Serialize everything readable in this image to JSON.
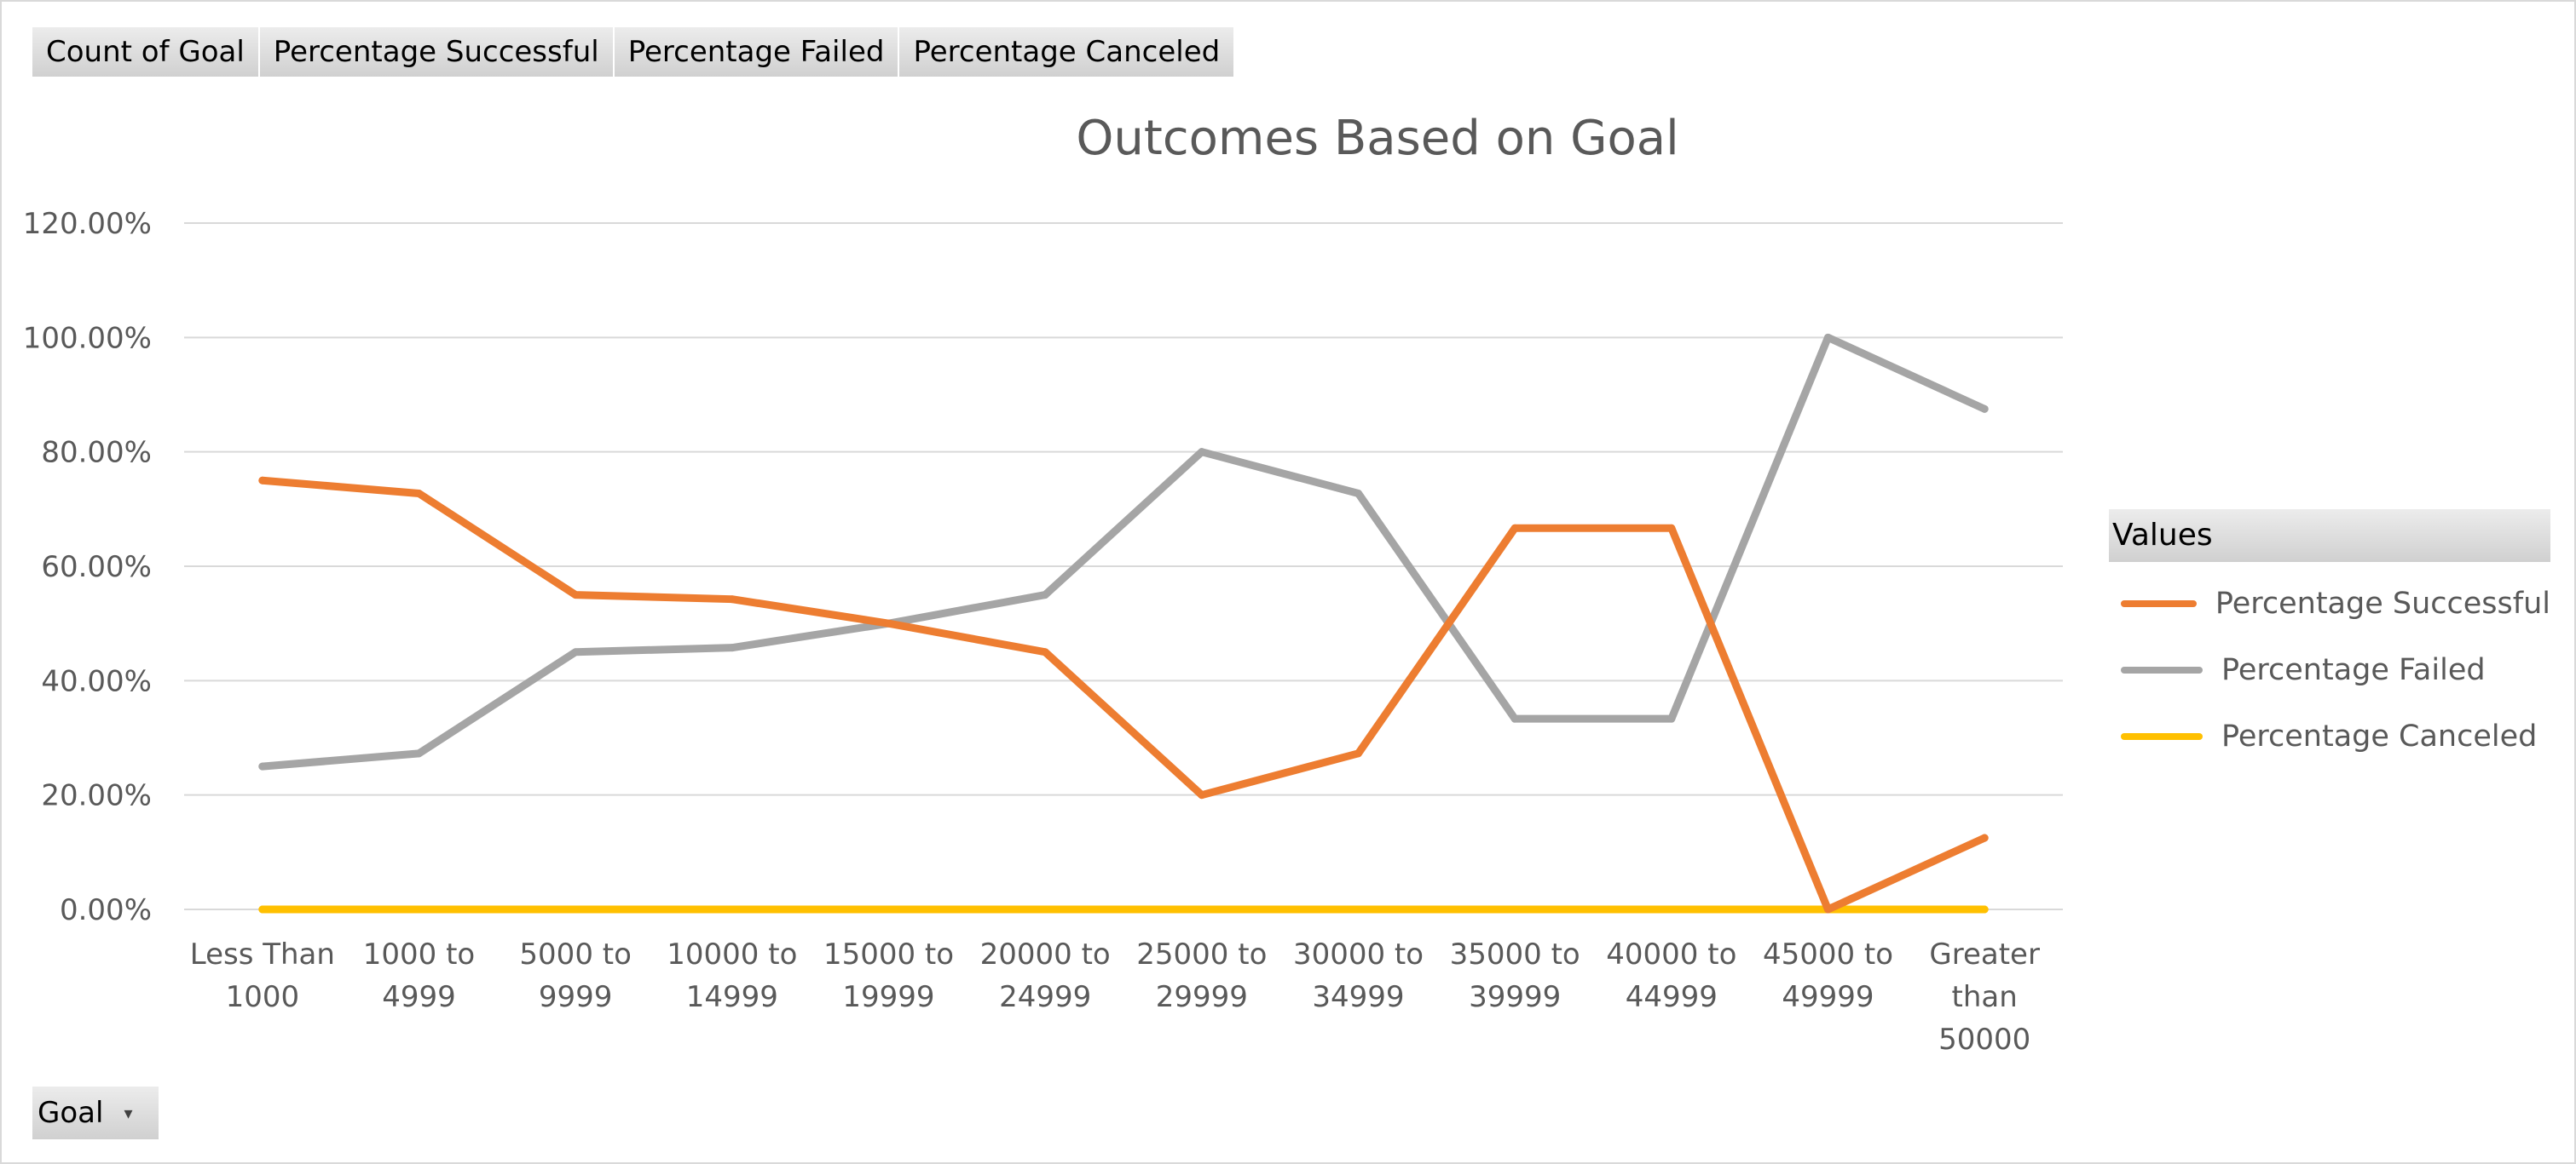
{
  "field_buttons": [
    "Count of Goal",
    "Percentage Successful",
    "Percentage Failed",
    "Percentage Canceled"
  ],
  "axis_field_button": {
    "label": "Goal"
  },
  "legend": {
    "header": "Values",
    "items": [
      {
        "label": "Percentage Successful",
        "color": "#ED7D31"
      },
      {
        "label": "Percentage Failed",
        "color": "#A5A5A5"
      },
      {
        "label": "Percentage Canceled",
        "color": "#FFC000"
      }
    ]
  },
  "chart_data": {
    "type": "line",
    "title": "Outcomes Based on Goal",
    "xlabel": "",
    "ylabel": "",
    "ylim": [
      0,
      1.2
    ],
    "y_ticks": [
      {
        "value": 0,
        "label": "0.00%"
      },
      {
        "value": 0.2,
        "label": "20.00%"
      },
      {
        "value": 0.4,
        "label": "40.00%"
      },
      {
        "value": 0.6,
        "label": "60.00%"
      },
      {
        "value": 0.8,
        "label": "80.00%"
      },
      {
        "value": 1.0,
        "label": "100.00%"
      },
      {
        "value": 1.2,
        "label": "120.00%"
      }
    ],
    "grid": true,
    "legend_position": "right",
    "categories": [
      [
        "Less Than",
        "1000"
      ],
      [
        "1000 to",
        "4999"
      ],
      [
        "5000 to",
        "9999"
      ],
      [
        "10000 to",
        "14999"
      ],
      [
        "15000 to",
        "19999"
      ],
      [
        "20000 to",
        "24999"
      ],
      [
        "25000 to",
        "29999"
      ],
      [
        "30000 to",
        "34999"
      ],
      [
        "35000 to",
        "39999"
      ],
      [
        "40000 to",
        "44999"
      ],
      [
        "45000 to",
        "49999"
      ],
      [
        "Greater",
        "than",
        "50000"
      ]
    ],
    "series": [
      {
        "name": "Percentage Successful",
        "color": "#ED7D31",
        "values": [
          0.75,
          0.7273,
          0.55,
          0.5424,
          0.5,
          0.45,
          0.2,
          0.2727,
          0.6667,
          0.6667,
          0.0,
          0.125
        ]
      },
      {
        "name": "Percentage Failed",
        "color": "#A5A5A5",
        "values": [
          0.25,
          0.2727,
          0.45,
          0.4576,
          0.5,
          0.55,
          0.8,
          0.7273,
          0.3333,
          0.3333,
          1.0,
          0.875
        ]
      },
      {
        "name": "Percentage Canceled",
        "color": "#FFC000",
        "values": [
          0,
          0,
          0,
          0,
          0,
          0,
          0,
          0,
          0,
          0,
          0,
          0
        ]
      }
    ]
  }
}
